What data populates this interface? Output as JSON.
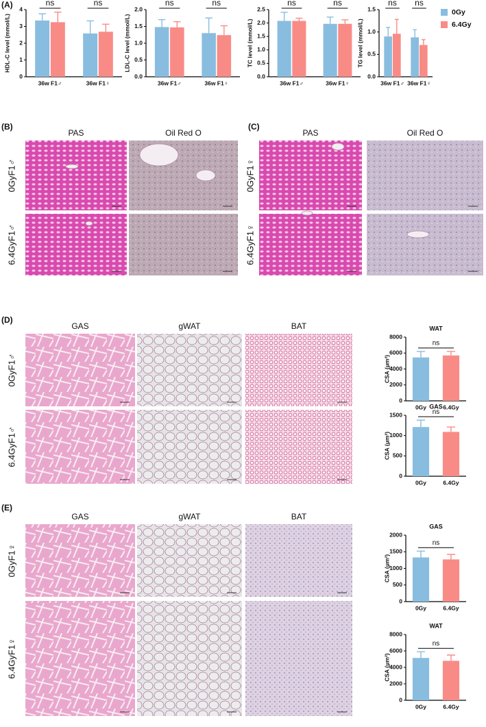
{
  "panels": [
    {
      "label": "(A)"
    },
    {
      "label": "(B)",
      "columns": [
        "PAS",
        "Oil Red O"
      ],
      "rows": [
        "0GyF1♂",
        "6.4GyF1♂"
      ]
    },
    {
      "label": "(C)",
      "columns": [
        "PAS",
        "Oil Red O"
      ],
      "rows": [
        "0GyF1♀",
        "6.4GyF1♀"
      ]
    },
    {
      "label": "(D)",
      "columns": [
        "GAS",
        "gWAT",
        "BAT"
      ],
      "rows": [
        "0GyF1♂",
        "6.4GyF1♂"
      ]
    },
    {
      "label": "(E)",
      "columns": [
        "GAS",
        "gWAT",
        "BAT"
      ],
      "rows": [
        "0GyF1♀",
        "6.4GyF1♀"
      ]
    }
  ],
  "chart_data": [
    {
      "type": "bar",
      "y_label": "HDL-C level (mmol/L)",
      "categories": [
        "36w F1♂",
        "36w F1♀"
      ],
      "series": [
        {
          "color": "#89bde0",
          "values": [
            3.35,
            2.58
          ],
          "errors": [
            0.4,
            0.75
          ]
        },
        {
          "color": "#f98b86",
          "values": [
            3.25,
            2.68
          ],
          "errors": [
            0.6,
            0.45
          ]
        }
      ],
      "annotations": [
        "ns",
        "ns"
      ],
      "ylim": [
        0,
        4
      ],
      "yticks": [
        0,
        1,
        2,
        3,
        4
      ]
    },
    {
      "type": "bar",
      "y_label": "LDL-C level (mmol/L)",
      "categories": [
        "36w F1♂",
        "36w F1♀"
      ],
      "series": [
        {
          "color": "#89bde0",
          "values": [
            1.48,
            1.3
          ],
          "errors": [
            0.22,
            0.45
          ]
        },
        {
          "color": "#f98b86",
          "values": [
            1.47,
            1.24
          ],
          "errors": [
            0.17,
            0.28
          ]
        }
      ],
      "annotations": [
        "ns",
        "ns"
      ],
      "ylim": [
        0,
        2
      ],
      "yticks": [
        {
          "value": 0,
          "label": "0.0"
        },
        0.5,
        {
          "value": 1,
          "label": "1.0"
        },
        1.5,
        {
          "value": 2,
          "label": "2.0"
        }
      ]
    },
    {
      "type": "bar",
      "y_label": "TC level (mmol/L)",
      "categories": [
        "36w F1♂",
        "36w F1♀"
      ],
      "series": [
        {
          "color": "#89bde0",
          "values": [
            2.08,
            1.97
          ],
          "errors": [
            0.32,
            0.25
          ]
        },
        {
          "color": "#f98b86",
          "values": [
            2.08,
            1.97
          ],
          "errors": [
            0.1,
            0.15
          ]
        }
      ],
      "annotations": [
        "ns",
        "ns"
      ],
      "ylim": [
        0,
        2.5
      ],
      "yticks": [
        {
          "value": 0,
          "label": "0.0"
        },
        0.5,
        {
          "value": 1,
          "label": "1.0"
        },
        1.5,
        {
          "value": 2,
          "label": "2.0"
        },
        2.5
      ]
    },
    {
      "type": "bar",
      "y_label": "TG level (mmol/L)",
      "categories": [
        "36w F1♂",
        "36w F1♀"
      ],
      "series": [
        {
          "name": "0Gy",
          "color": "#89bde0",
          "values": [
            0.9,
            0.88
          ],
          "errors": [
            0.2,
            0.17
          ]
        },
        {
          "name": "6.4Gy",
          "color": "#f98b86",
          "values": [
            0.96,
            0.71
          ],
          "errors": [
            0.32,
            0.12
          ]
        }
      ],
      "annotations": [
        "ns",
        "ns"
      ],
      "ylim": [
        0,
        1.5
      ],
      "legend": "right",
      "yticks": [
        {
          "value": 0,
          "label": "0.0"
        },
        0.5,
        {
          "value": 1,
          "label": "1.0"
        },
        1.5
      ]
    },
    {
      "type": "bar",
      "title": "WAT",
      "y_label": "CSA (μm²)",
      "categories": [
        "0Gy",
        "6.4Gy"
      ],
      "values": [
        5450,
        5700
      ],
      "errors": [
        750,
        500
      ],
      "colors": [
        "#89bde0",
        "#f98b86"
      ],
      "annotations": [
        "ns"
      ],
      "ylim": [
        0,
        8000
      ],
      "yticks": [
        0,
        2000,
        4000,
        6000,
        8000
      ]
    },
    {
      "type": "bar",
      "title": "GAS",
      "y_label": "CSA (μm²)",
      "categories": [
        "0Gy",
        "6.4Gy"
      ],
      "values": [
        1210,
        1090
      ],
      "errors": [
        170,
        120
      ],
      "colors": [
        "#89bde0",
        "#f98b86"
      ],
      "annotations": [
        "ns"
      ],
      "ylim": [
        0,
        1500
      ],
      "yticks": [
        0,
        500,
        1000,
        1500
      ]
    },
    {
      "type": "bar",
      "title": "GAS",
      "y_label": "CSA (μm²)",
      "categories": [
        "0Gy",
        "6.4Gy"
      ],
      "values": [
        1330,
        1270
      ],
      "errors": [
        190,
        150
      ],
      "colors": [
        "#89bde0",
        "#f98b86"
      ],
      "annotations": [
        "ns"
      ],
      "ylim": [
        0,
        2000
      ],
      "yticks": [
        0,
        500,
        1000,
        1500,
        2000
      ]
    },
    {
      "type": "bar",
      "title": "WAT",
      "y_label": "CSA (μm²)",
      "categories": [
        "0Gy",
        "6.4Gy"
      ],
      "values": [
        5150,
        4800
      ],
      "errors": [
        750,
        700
      ],
      "colors": [
        "#89bde0",
        "#f98b86"
      ],
      "annotations": [
        "ns"
      ],
      "ylim": [
        0,
        8000
      ],
      "yticks": [
        0,
        2000,
        4000,
        6000,
        8000
      ]
    }
  ]
}
